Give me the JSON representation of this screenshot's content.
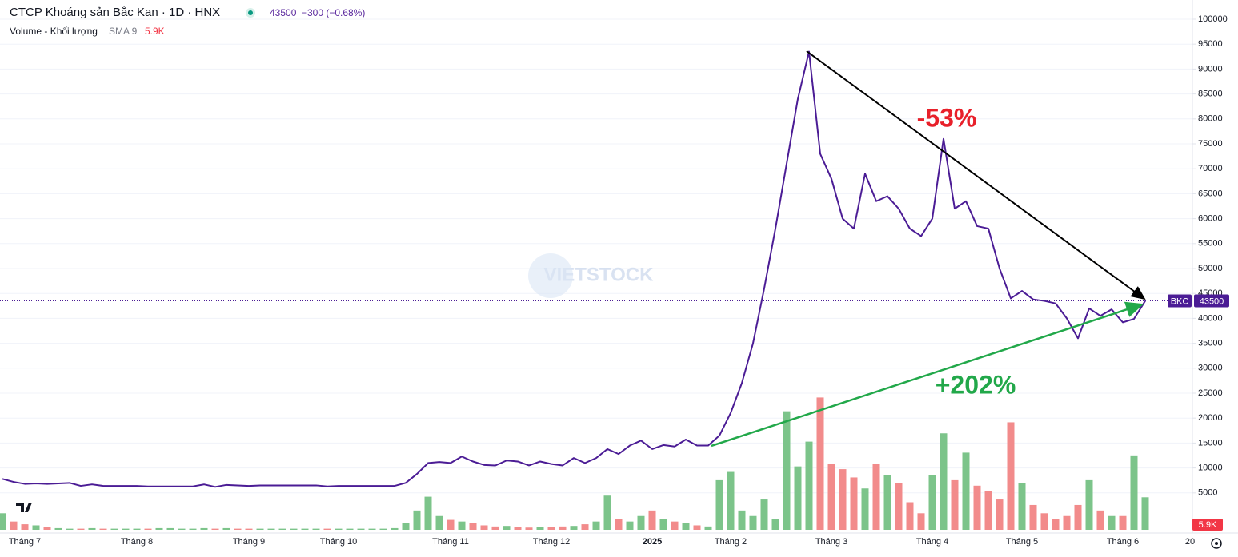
{
  "chart_data": {
    "type": "line",
    "title": "CTCP Khoáng sản Bắc Kan · 1D · HNX",
    "last_price": 43500,
    "change": "−300 (−0.68%)",
    "watermark": "VIETSTOCK",
    "categories": [
      null,
      null,
      "Tháng 7",
      null,
      null,
      null,
      null,
      null,
      null,
      null,
      null,
      null,
      "Tháng 8",
      null,
      null,
      null,
      null,
      null,
      null,
      null,
      null,
      null,
      "Tháng 9",
      null,
      null,
      null,
      null,
      null,
      null,
      null,
      "Tháng 10",
      null,
      null,
      null,
      null,
      null,
      null,
      null,
      null,
      null,
      "Tháng 11",
      null,
      null,
      null,
      null,
      null,
      null,
      null,
      null,
      "Tháng 12",
      null,
      null,
      null,
      null,
      null,
      null,
      null,
      null,
      "2025",
      null,
      null,
      null,
      null,
      null,
      null,
      "Tháng 2",
      null,
      null,
      null,
      null,
      null,
      null,
      null,
      null,
      "Tháng 3",
      null,
      null,
      null,
      null,
      null,
      null,
      null,
      null,
      "Tháng 4",
      null,
      null,
      null,
      null,
      null,
      null,
      null,
      "Tháng 5",
      null,
      null,
      null,
      null,
      null,
      null,
      null,
      null,
      "Tháng 6",
      null,
      null,
      null,
      null,
      null,
      "20"
    ],
    "series": [
      {
        "name": "BKC",
        "color": "#4b1c95",
        "values": [
          7800,
          7200,
          6800,
          6900,
          6800,
          6900,
          7000,
          6400,
          6700,
          6400,
          6400,
          6400,
          6400,
          6300,
          6300,
          6300,
          6300,
          6300,
          6700,
          6200,
          6600,
          6500,
          6400,
          6500,
          6500,
          6500,
          6500,
          6500,
          6500,
          6300,
          6400,
          6400,
          6400,
          6400,
          6400,
          6400,
          7000,
          8800,
          11000,
          11200,
          11000,
          12300,
          11300,
          10600,
          10500,
          11500,
          11300,
          10500,
          11300,
          10800,
          10500,
          12000,
          11000,
          12000,
          13800,
          12800,
          14500,
          15500,
          13800,
          14600,
          14300,
          15700,
          14500,
          14500,
          16500,
          21000,
          27000,
          35000,
          46000,
          58000,
          71000,
          84000,
          93500,
          73000,
          68000,
          60000,
          58000,
          69000,
          63500,
          64500,
          62000,
          58000,
          56500,
          60000,
          76000,
          62000,
          63500,
          58500,
          58000,
          50000,
          44000,
          45500,
          43800,
          43500,
          43000,
          40000,
          36000,
          42000,
          40500,
          41800,
          39200,
          39900,
          43500,
          null,
          null,
          null,
          null
        ]
      }
    ],
    "volume": {
      "name": "Volume - Khối lượng",
      "indicator": "SMA 9",
      "last_label": "5.9K",
      "up_color": "#7cc48a",
      "down_color": "#f28b8b",
      "ylim": [
        0,
        40000
      ],
      "values": [
        3000,
        1500,
        1000,
        800,
        500,
        300,
        200,
        200,
        300,
        200,
        200,
        200,
        200,
        200,
        300,
        300,
        200,
        200,
        300,
        200,
        300,
        200,
        200,
        200,
        200,
        200,
        200,
        200,
        200,
        200,
        200,
        200,
        200,
        200,
        200,
        300,
        1200,
        3500,
        6000,
        2500,
        1800,
        1500,
        1200,
        800,
        600,
        700,
        500,
        400,
        500,
        500,
        600,
        700,
        1000,
        1500,
        6200,
        2000,
        1500,
        2500,
        3500,
        2000,
        1500,
        1200,
        800,
        600,
        9000,
        10500,
        3500,
        2500,
        5500,
        2000,
        21500,
        11500,
        16000,
        24000,
        12000,
        11000,
        9500,
        7500,
        12000,
        10000,
        8500,
        5000,
        3000,
        10000,
        17500,
        9000,
        14000,
        8000,
        7000,
        5500,
        19500,
        8500,
        4500,
        3000,
        2000,
        2500,
        4500,
        9000,
        3500,
        2500,
        2500,
        13500,
        5900,
        null,
        null,
        null,
        null
      ]
    },
    "annotations": [
      {
        "text": "-53%",
        "color": "#e8202a"
      },
      {
        "text": "+202%",
        "color": "#22a84a"
      }
    ],
    "ylim": [
      0,
      100000
    ],
    "yticks": [
      5000,
      10000,
      15000,
      20000,
      25000,
      30000,
      35000,
      40000,
      45000,
      50000,
      55000,
      60000,
      65000,
      70000,
      75000,
      80000,
      85000,
      90000,
      95000,
      100000
    ],
    "grid": true
  }
}
